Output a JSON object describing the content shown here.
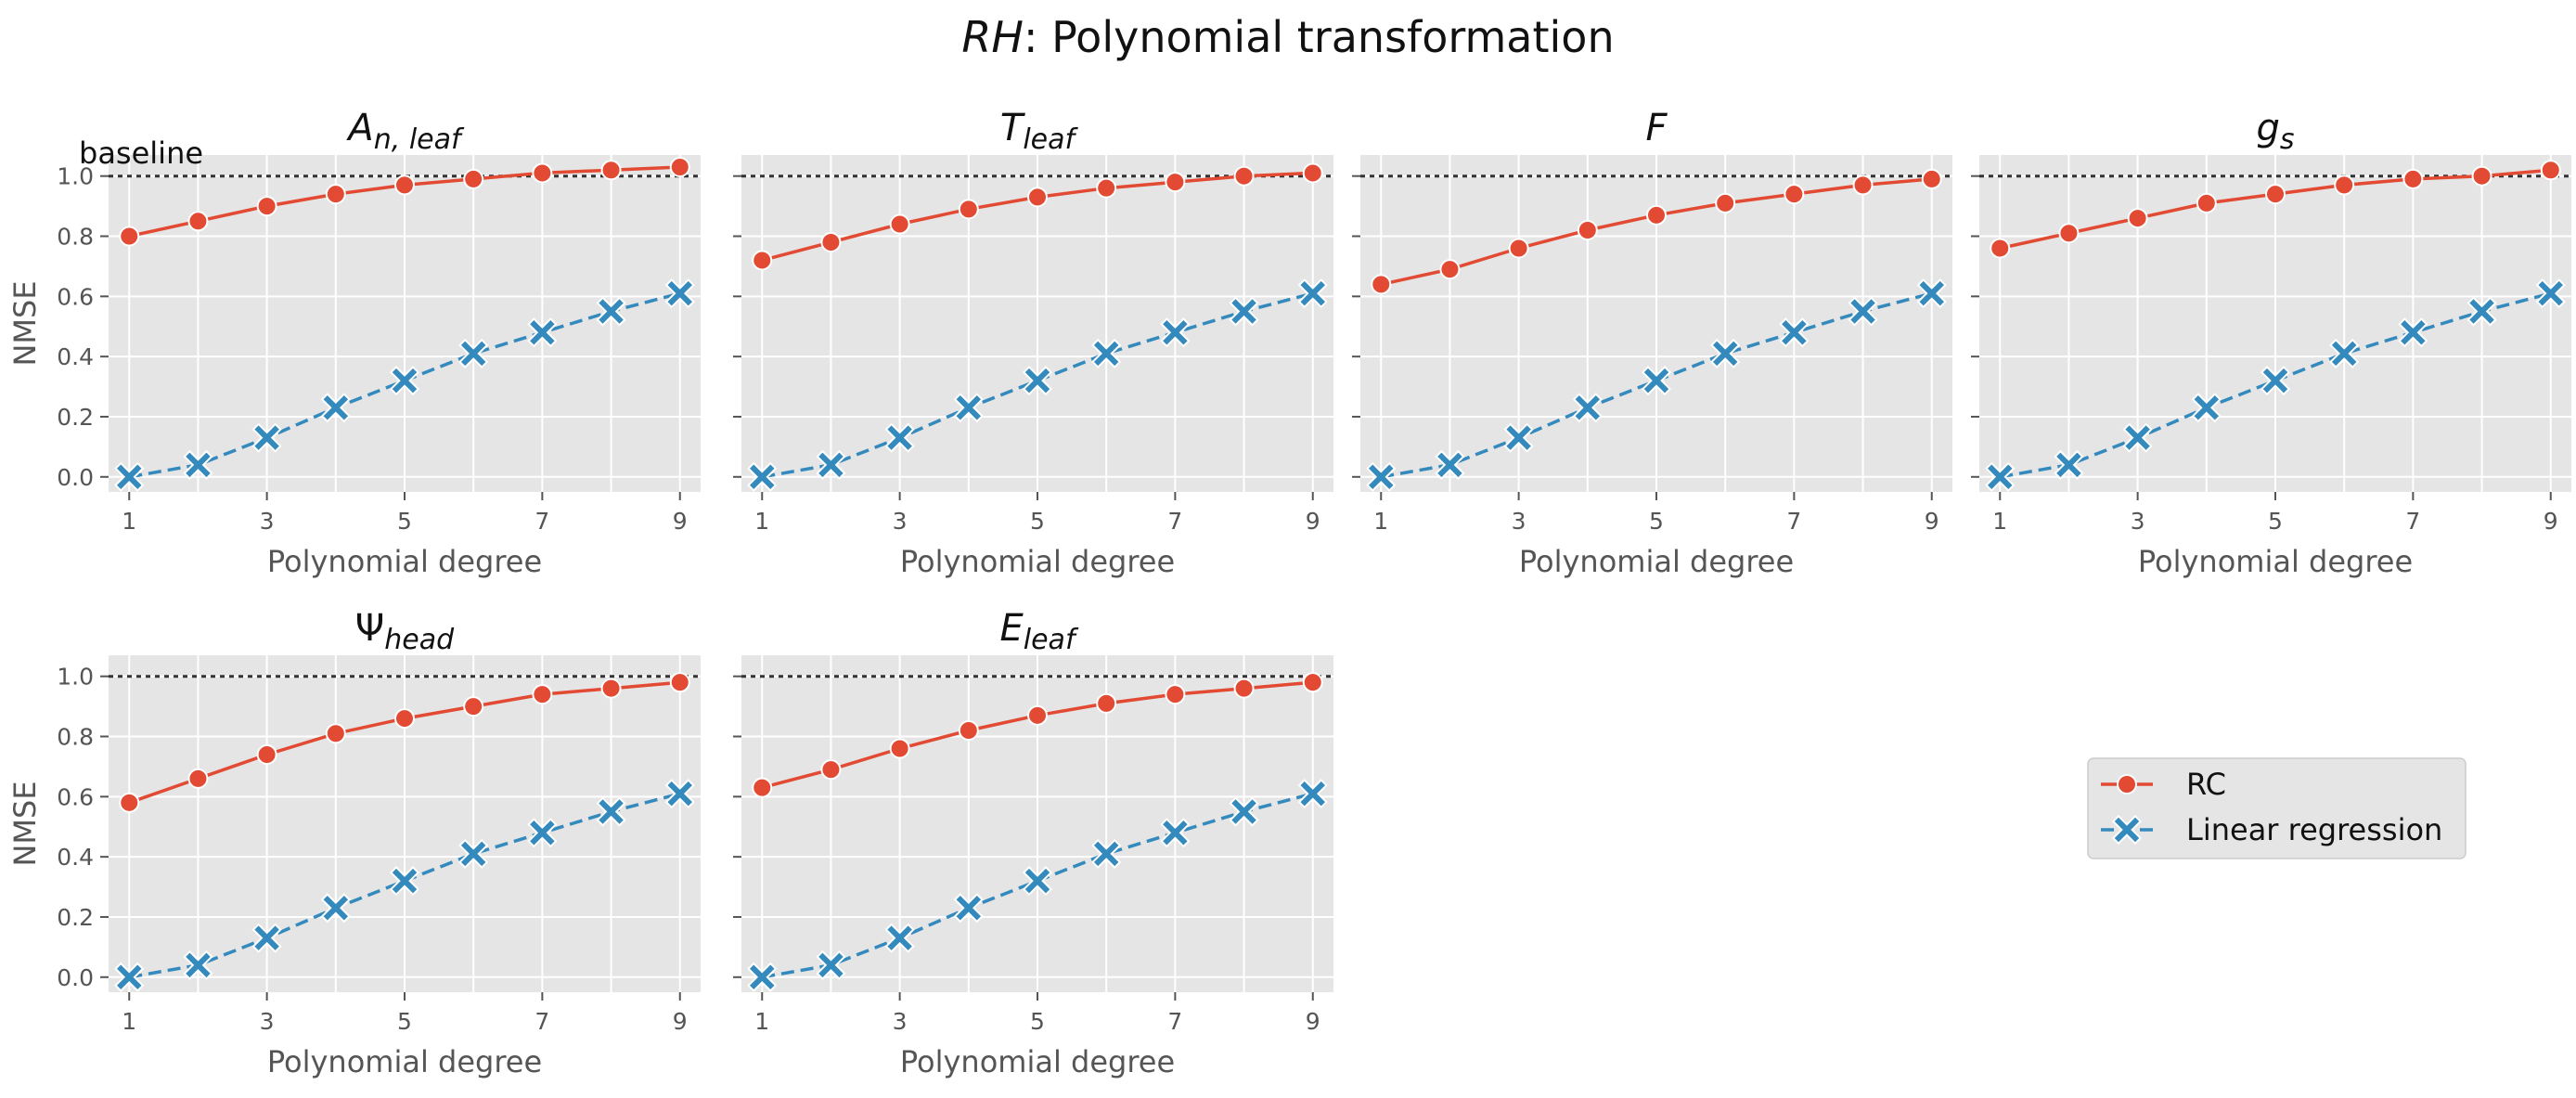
{
  "figure": {
    "title_italic": "RH",
    "title_rest": ": Polynomial transformation"
  },
  "baseline_label": "baseline",
  "legend": {
    "rc": "RC",
    "linear": "Linear regression"
  },
  "colors": {
    "rc": "#E24A33",
    "linear": "#348ABD",
    "panel_bg": "#E5E5E5",
    "grid": "#FFFFFF",
    "baseline": "#333333",
    "tick_text": "#555555"
  },
  "chart_data": [
    {
      "type": "line",
      "title": "A_{n,leaf}",
      "title_main": "A",
      "title_sub": "n, leaf",
      "xlabel": "Polynomial degree",
      "ylabel": "NMSE",
      "x": [
        1,
        2,
        3,
        4,
        5,
        6,
        7,
        8,
        9
      ],
      "xticks": [
        1,
        3,
        5,
        7,
        9
      ],
      "ylim": [
        -0.05,
        1.07
      ],
      "yticks": [
        0.0,
        0.2,
        0.4,
        0.6,
        0.8,
        1.0
      ],
      "baseline": 1.0,
      "series": [
        {
          "name": "RC",
          "values": [
            0.8,
            0.85,
            0.9,
            0.94,
            0.97,
            0.99,
            1.01,
            1.02,
            1.03
          ]
        },
        {
          "name": "Linear regression",
          "values": [
            0.0,
            0.04,
            0.13,
            0.23,
            0.32,
            0.41,
            0.48,
            0.55,
            0.61
          ]
        }
      ]
    },
    {
      "type": "line",
      "title": "T_{leaf}",
      "title_main": "T",
      "title_sub": "leaf",
      "xlabel": "Polynomial degree",
      "ylabel": "",
      "x": [
        1,
        2,
        3,
        4,
        5,
        6,
        7,
        8,
        9
      ],
      "xticks": [
        1,
        3,
        5,
        7,
        9
      ],
      "ylim": [
        -0.05,
        1.07
      ],
      "yticks": [
        0.0,
        0.2,
        0.4,
        0.6,
        0.8,
        1.0
      ],
      "baseline": 1.0,
      "series": [
        {
          "name": "RC",
          "values": [
            0.72,
            0.78,
            0.84,
            0.89,
            0.93,
            0.96,
            0.98,
            1.0,
            1.01
          ]
        },
        {
          "name": "Linear regression",
          "values": [
            0.0,
            0.04,
            0.13,
            0.23,
            0.32,
            0.41,
            0.48,
            0.55,
            0.61
          ]
        }
      ]
    },
    {
      "type": "line",
      "title": "F",
      "title_main": "F",
      "title_sub": "",
      "xlabel": "Polynomial degree",
      "ylabel": "",
      "x": [
        1,
        2,
        3,
        4,
        5,
        6,
        7,
        8,
        9
      ],
      "xticks": [
        1,
        3,
        5,
        7,
        9
      ],
      "ylim": [
        -0.05,
        1.07
      ],
      "yticks": [
        0.0,
        0.2,
        0.4,
        0.6,
        0.8,
        1.0
      ],
      "baseline": 1.0,
      "series": [
        {
          "name": "RC",
          "values": [
            0.64,
            0.69,
            0.76,
            0.82,
            0.87,
            0.91,
            0.94,
            0.97,
            0.99
          ]
        },
        {
          "name": "Linear regression",
          "values": [
            0.0,
            0.04,
            0.13,
            0.23,
            0.32,
            0.41,
            0.48,
            0.55,
            0.61
          ]
        }
      ]
    },
    {
      "type": "line",
      "title": "g_s",
      "title_main": "g",
      "title_sub": "s",
      "xlabel": "Polynomial degree",
      "ylabel": "",
      "x": [
        1,
        2,
        3,
        4,
        5,
        6,
        7,
        8,
        9
      ],
      "xticks": [
        1,
        3,
        5,
        7,
        9
      ],
      "ylim": [
        -0.05,
        1.07
      ],
      "yticks": [
        0.0,
        0.2,
        0.4,
        0.6,
        0.8,
        1.0
      ],
      "baseline": 1.0,
      "series": [
        {
          "name": "RC",
          "values": [
            0.76,
            0.81,
            0.86,
            0.91,
            0.94,
            0.97,
            0.99,
            1.0,
            1.02
          ]
        },
        {
          "name": "Linear regression",
          "values": [
            0.0,
            0.04,
            0.13,
            0.23,
            0.32,
            0.41,
            0.48,
            0.55,
            0.61
          ]
        }
      ]
    },
    {
      "type": "line",
      "title": "Ψ_{head}",
      "title_main": "Ψ",
      "title_sub": "head",
      "xlabel": "Polynomial degree",
      "ylabel": "NMSE",
      "x": [
        1,
        2,
        3,
        4,
        5,
        6,
        7,
        8,
        9
      ],
      "xticks": [
        1,
        3,
        5,
        7,
        9
      ],
      "ylim": [
        -0.05,
        1.07
      ],
      "yticks": [
        0.0,
        0.2,
        0.4,
        0.6,
        0.8,
        1.0
      ],
      "baseline": 1.0,
      "series": [
        {
          "name": "RC",
          "values": [
            0.58,
            0.66,
            0.74,
            0.81,
            0.86,
            0.9,
            0.94,
            0.96,
            0.98
          ]
        },
        {
          "name": "Linear regression",
          "values": [
            0.0,
            0.04,
            0.13,
            0.23,
            0.32,
            0.41,
            0.48,
            0.55,
            0.61
          ]
        }
      ]
    },
    {
      "type": "line",
      "title": "E_{leaf}",
      "title_main": "E",
      "title_sub": "leaf",
      "xlabel": "Polynomial degree",
      "ylabel": "",
      "x": [
        1,
        2,
        3,
        4,
        5,
        6,
        7,
        8,
        9
      ],
      "xticks": [
        1,
        3,
        5,
        7,
        9
      ],
      "ylim": [
        -0.05,
        1.07
      ],
      "yticks": [
        0.0,
        0.2,
        0.4,
        0.6,
        0.8,
        1.0
      ],
      "baseline": 1.0,
      "series": [
        {
          "name": "RC",
          "values": [
            0.63,
            0.69,
            0.76,
            0.82,
            0.87,
            0.91,
            0.94,
            0.96,
            0.98
          ]
        },
        {
          "name": "Linear regression",
          "values": [
            0.0,
            0.04,
            0.13,
            0.23,
            0.32,
            0.41,
            0.48,
            0.55,
            0.61
          ]
        }
      ]
    }
  ]
}
